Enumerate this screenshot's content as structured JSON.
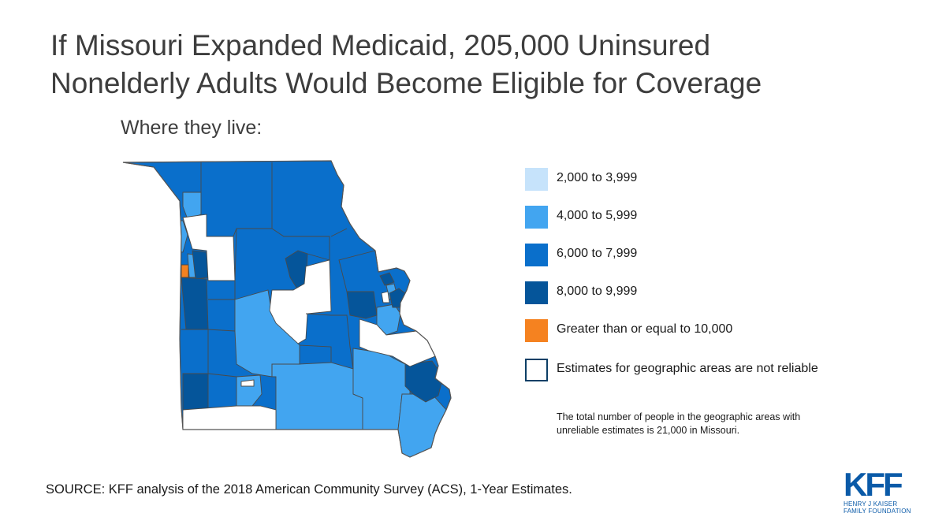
{
  "title": {
    "line1": "If Missouri Expanded Medicaid, 205,000 Uninsured",
    "line2": "Nonelderly Adults Would Become Eligible for Coverage"
  },
  "subtitle": "Where they live:",
  "colors": {
    "c2k": "#c6e3fb",
    "c4k": "#42a5f0",
    "c6k": "#0a6fcb",
    "c8k": "#05559a",
    "c10k": "#f58220",
    "na": "#ffffff",
    "na_outline": "#0d3f66",
    "border": "#4a4a4a"
  },
  "legend": [
    {
      "label": "2,000 to 3,999",
      "color_key": "c2k"
    },
    {
      "label": "4,000 to 5,999",
      "color_key": "c4k"
    },
    {
      "label": "6,000 to 7,999",
      "color_key": "c6k"
    },
    {
      "label": "8,000 to 9,999",
      "color_key": "c8k"
    },
    {
      "label": "Greater than or equal to 10,000",
      "color_key": "c10k"
    },
    {
      "label": "Estimates for geographic areas are not reliable",
      "color_key": "na"
    }
  ],
  "note": {
    "line1": "The total number of people in the geographic areas with",
    "line2": "unreliable estimates is 21,000 in Missouri."
  },
  "source": "SOURCE: KFF analysis of the 2018 American Community Survey (ACS), 1-Year Estimates.",
  "logo": {
    "mark": "KFF",
    "line1": "HENRY J KAISER",
    "line2": "FAMILY FOUNDATION"
  }
}
